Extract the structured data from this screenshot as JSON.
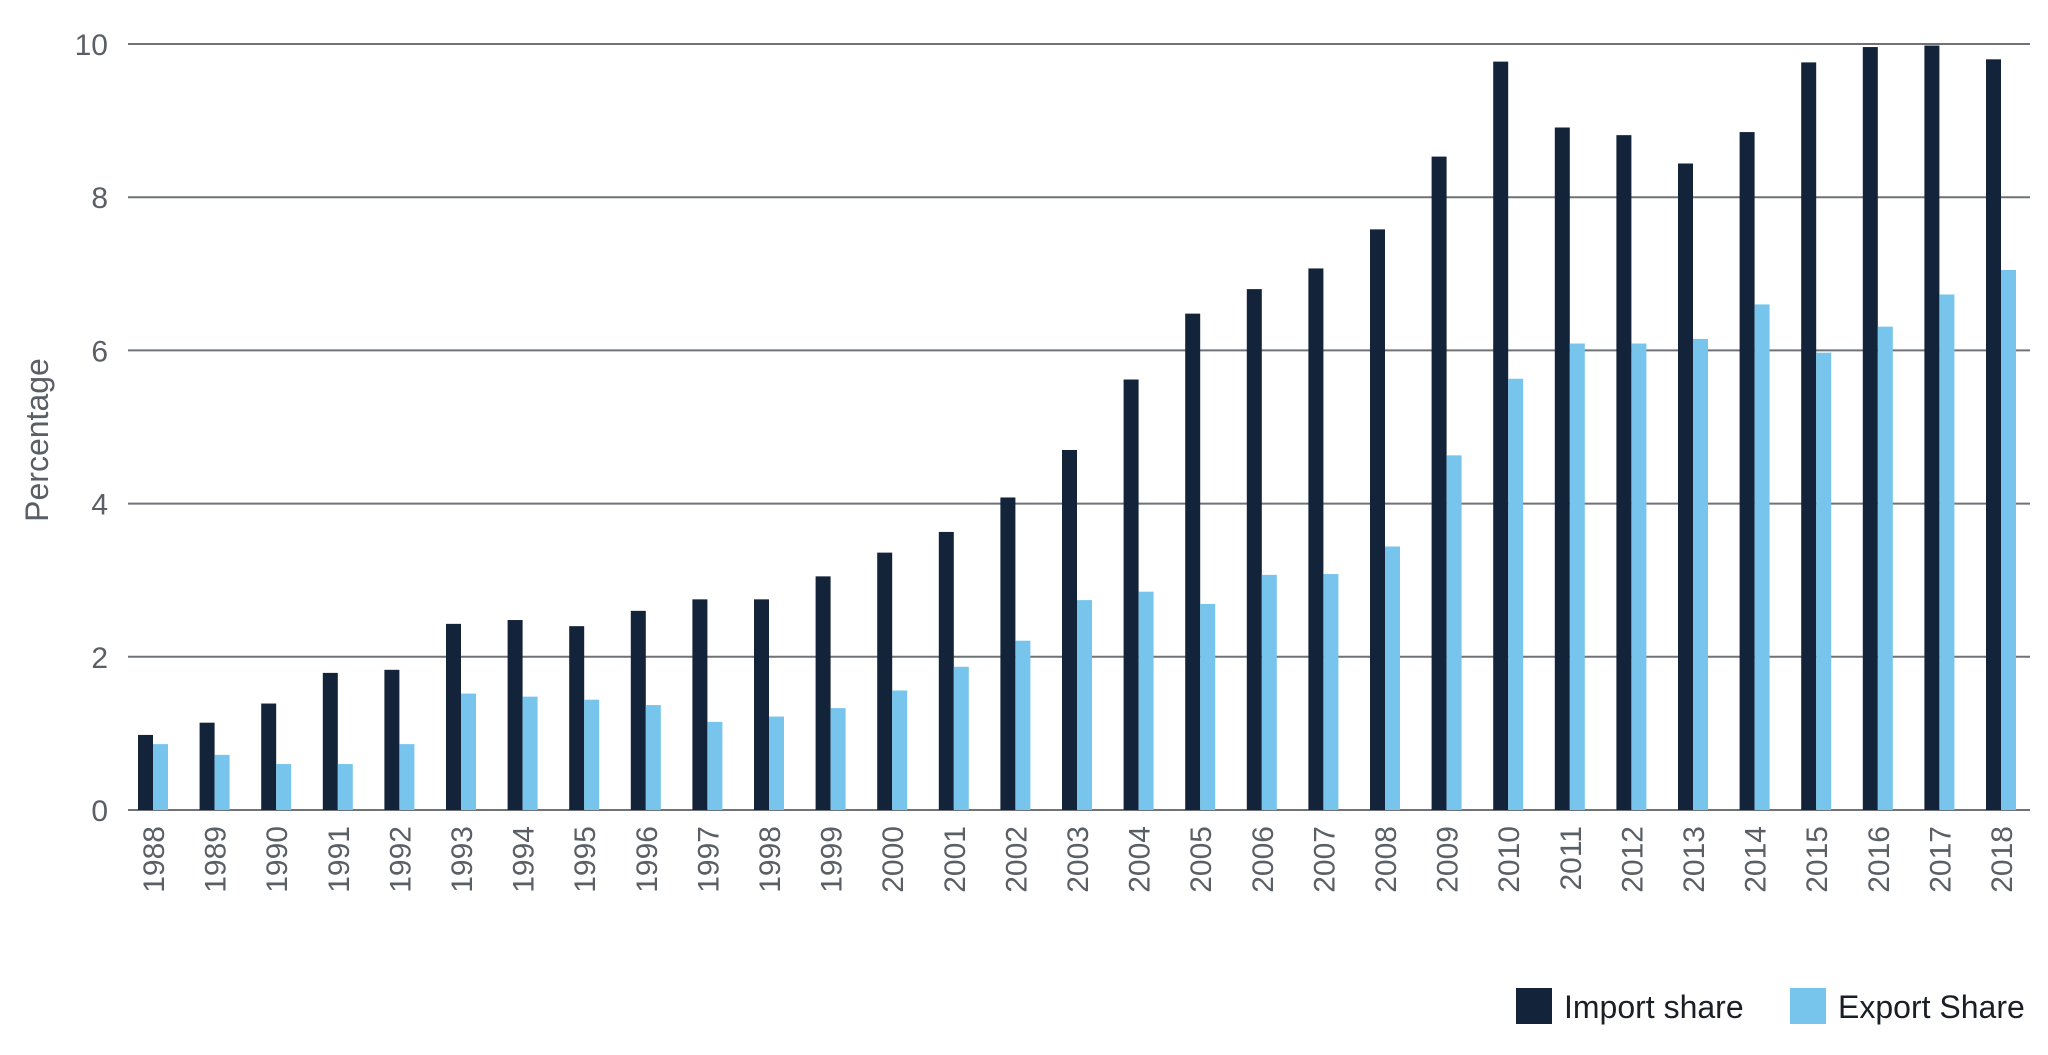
{
  "chart_data": {
    "type": "bar",
    "title": "",
    "xlabel": "",
    "ylabel": "Percentage",
    "ylim": [
      0,
      10
    ],
    "yticks": [
      0,
      2,
      4,
      6,
      8,
      10
    ],
    "grid": true,
    "legend_position": "bottom-right",
    "categories": [
      "1988",
      "1989",
      "1990",
      "1991",
      "1992",
      "1993",
      "1994",
      "1995",
      "1996",
      "1997",
      "1998",
      "1999",
      "2000",
      "2001",
      "2002",
      "2003",
      "2004",
      "2005",
      "2006",
      "2007",
      "2008",
      "2009",
      "2010",
      "2011",
      "2012",
      "2013",
      "2014",
      "2015",
      "2016",
      "2017",
      "2018"
    ],
    "series": [
      {
        "name": "Import share",
        "color": "#13233a",
        "values": [
          0.98,
          1.14,
          1.39,
          1.79,
          1.83,
          2.43,
          2.48,
          2.4,
          2.6,
          2.75,
          2.75,
          3.05,
          3.36,
          3.63,
          4.08,
          4.7,
          5.62,
          6.48,
          6.8,
          7.07,
          7.58,
          8.53,
          9.77,
          8.91,
          8.81,
          8.44,
          8.85,
          9.76,
          9.96,
          9.98,
          9.8
        ]
      },
      {
        "name": "Export Share",
        "color": "#77c5ec",
        "values": [
          0.86,
          0.72,
          0.6,
          0.6,
          0.86,
          1.52,
          1.48,
          1.44,
          1.37,
          1.15,
          1.22,
          1.33,
          1.56,
          1.87,
          2.21,
          2.74,
          2.85,
          2.69,
          3.07,
          3.08,
          3.44,
          4.63,
          5.63,
          6.09,
          6.09,
          6.15,
          6.6,
          5.97,
          6.31,
          6.73,
          7.05
        ]
      }
    ]
  }
}
